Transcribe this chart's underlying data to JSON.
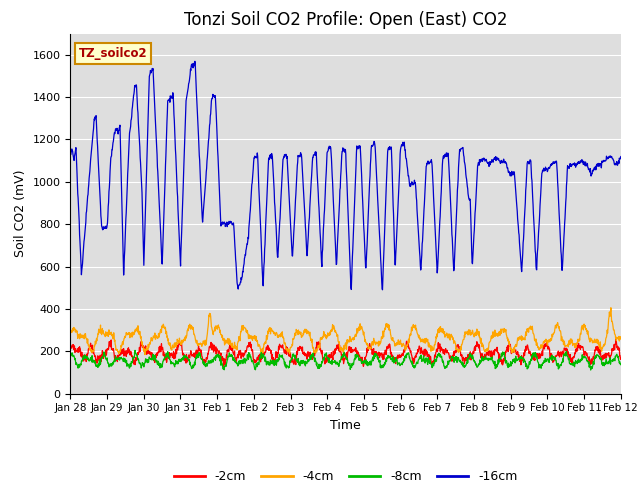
{
  "title": "Tonzi Soil CO2 Profile: Open (East) CO2",
  "ylabel": "Soil CO2 (mV)",
  "xlabel": "Time",
  "legend_label": "TZ_soilco2",
  "series_labels": [
    "-2cm",
    "-4cm",
    "-8cm",
    "-16cm"
  ],
  "series_colors": [
    "#ff0000",
    "#ffa500",
    "#00bb00",
    "#0000cc"
  ],
  "ylim": [
    0,
    1700
  ],
  "yticks": [
    0,
    200,
    400,
    600,
    800,
    1000,
    1200,
    1400,
    1600
  ],
  "xtick_labels": [
    "Jan 28",
    "Jan 29",
    "Jan 30",
    "Jan 31",
    "Feb 1",
    "Feb 2",
    "Feb 3",
    "Feb 4",
    "Feb 5",
    "Feb 6",
    "Feb 7",
    "Feb 8",
    "Feb 9",
    "Feb 10",
    "Feb 11",
    "Feb 12"
  ],
  "background_color": "#dedede",
  "title_fontsize": 12,
  "axis_fontsize": 9,
  "legend_box_facecolor": "#ffffcc",
  "legend_box_edgecolor": "#cc8800",
  "legend_label_color": "#aa0000"
}
